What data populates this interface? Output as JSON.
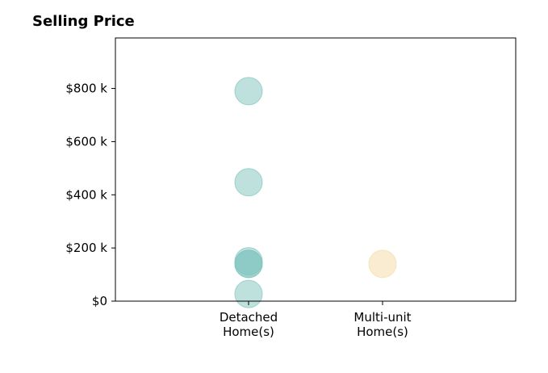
{
  "chart_data": {
    "type": "scatter",
    "title": "Selling Price",
    "xlabel": "",
    "ylabel": "",
    "categories": [
      [
        "Detached",
        "Home(s)"
      ],
      [
        "Multi-unit",
        "Home(s)"
      ]
    ],
    "ylim": [
      0,
      990000
    ],
    "yticks": [
      {
        "value": 0,
        "label": "$0"
      },
      {
        "value": 200000,
        "label": "$200 k"
      },
      {
        "value": 400000,
        "label": "$400 k"
      },
      {
        "value": 600000,
        "label": "$600 k"
      },
      {
        "value": 800000,
        "label": "$800 k"
      }
    ],
    "grid": false,
    "series": [
      {
        "category_index": 0,
        "color": "#7fc4bd",
        "opacity": 0.5,
        "values": [
          790000,
          447000,
          150000,
          140000,
          140000,
          27000
        ]
      },
      {
        "category_index": 1,
        "color": "#f5dfb0",
        "opacity": 0.6,
        "values": [
          140000
        ]
      }
    ]
  }
}
